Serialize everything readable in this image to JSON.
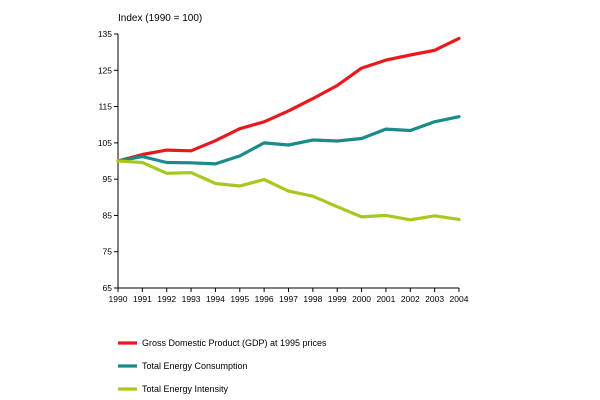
{
  "chart_data": {
    "type": "line",
    "title": "",
    "unit_label": "Index (1990 = 100)",
    "xlabel": "",
    "ylabel": "",
    "ylim": [
      65,
      135
    ],
    "y_ticks": [
      65,
      75,
      85,
      95,
      105,
      115,
      125,
      135
    ],
    "x": [
      "1990",
      "1991",
      "1992",
      "1993",
      "1994",
      "1995",
      "1996",
      "1997",
      "1998",
      "1999",
      "2000",
      "2001",
      "2002",
      "2003",
      "2004"
    ],
    "grid": false,
    "legend_position": "bottom-left",
    "series": [
      {
        "name": "Gross Domestic Product (GDP) at 1995 prices",
        "color": "#e8191d",
        "values": [
          100,
          101.8,
          103.0,
          102.8,
          105.6,
          108.9,
          110.8,
          113.8,
          117.2,
          120.8,
          125.6,
          127.8,
          129.2,
          130.5,
          133.8
        ]
      },
      {
        "name": "Total Energy Consumption",
        "color": "#1a8a8a",
        "values": [
          100,
          101.2,
          99.6,
          99.5,
          99.2,
          101.4,
          105.0,
          104.4,
          105.8,
          105.5,
          106.2,
          108.8,
          108.4,
          110.8,
          112.2
        ]
      },
      {
        "name": "Total Energy Intensity",
        "color": "#a6c91f",
        "values": [
          100,
          99.6,
          96.6,
          96.8,
          93.8,
          93.1,
          94.9,
          91.7,
          90.3,
          87.4,
          84.6,
          85.0,
          83.8,
          84.9,
          83.9
        ]
      }
    ]
  }
}
